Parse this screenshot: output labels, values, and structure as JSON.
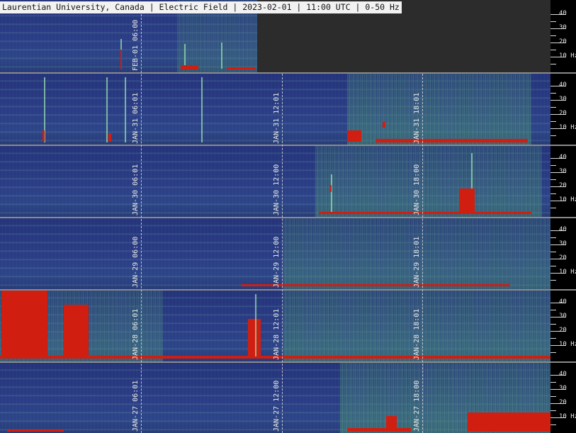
{
  "header": {
    "title": "Laurentian University, Canada | Electric Field | 2023-02-01 | 11:00 UTC | 0-50 Hz"
  },
  "axis": {
    "tick_labels": [
      "40",
      "30",
      "20",
      "10 Hz"
    ]
  },
  "rows": [
    {
      "id": "row-feb01",
      "labels": [
        "FEB-01 06:00"
      ],
      "partial": true
    },
    {
      "id": "row-jan31",
      "labels": [
        "JAN-31 06:01",
        "JAN-31 12:01",
        "JAN-31 18:01"
      ]
    },
    {
      "id": "row-jan30",
      "labels": [
        "JAN-30 06:01",
        "JAN-30 12:00",
        "JAN-30 18:00"
      ]
    },
    {
      "id": "row-jan29",
      "labels": [
        "JAN-29 06:00",
        "JAN-29 12:00",
        "JAN-29 18:01"
      ]
    },
    {
      "id": "row-jan28",
      "labels": [
        "JAN-28 06:01",
        "JAN-28 12:01",
        "JAN-28 18:01"
      ]
    },
    {
      "id": "row-jan27",
      "labels": [
        "JAN-27 06:01",
        "JAN-27 12:00",
        "JAN-27 18:00"
      ]
    }
  ],
  "colors": {
    "background": "#000000",
    "spectrogram_base": "#2a3a86",
    "signal_green": "#6fbf8a",
    "signal_red": "#d01e10",
    "header_bg": "#f2f2f2"
  }
}
